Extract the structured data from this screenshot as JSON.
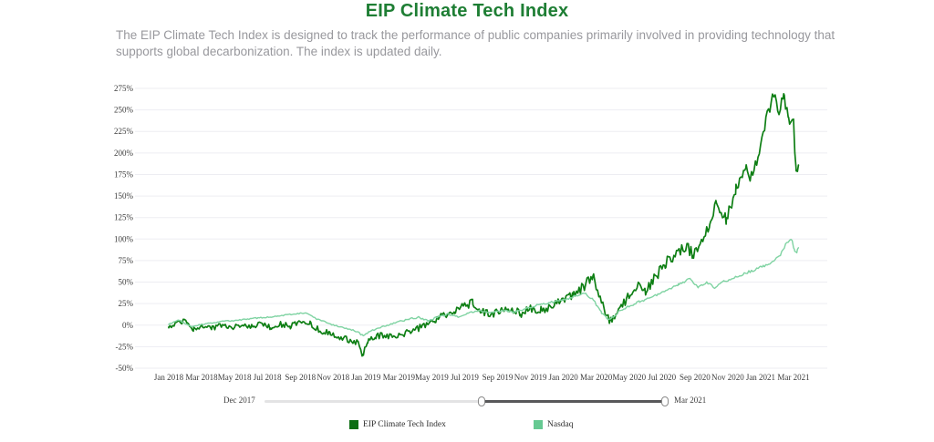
{
  "header": {
    "title": "EIP Climate Tech Index",
    "description": "The EIP Climate Tech Index is designed to track the performance of public companies primarily involved in providing technology that supports global decarbonization. The index is updated daily."
  },
  "colors": {
    "title_green": "#1e7e34",
    "eip_line": "#0e7f14",
    "eip_swatch": "#0d6e13",
    "nasdaq_line": "#7fd3a2",
    "nasdaq_swatch": "#66c992",
    "gridline": "#ededf2",
    "axis_text": "#3c3c3c",
    "description_gray": "#98989d",
    "slider_track_light": "#e3e3e4",
    "slider_track_dark": "#58585a"
  },
  "chart_data": {
    "type": "line",
    "title": "EIP Climate Tech Index",
    "xlabel": "",
    "ylabel": "",
    "grid": true,
    "legend_position": "bottom",
    "x_unit": "months since Jan 2018",
    "xlim": [
      -4.1,
      40.1
    ],
    "ylim": [
      -50,
      275
    ],
    "x_tick_positions": [
      0,
      2,
      4,
      6,
      8,
      10,
      12,
      14,
      16,
      18,
      20,
      22,
      24,
      26,
      28,
      30,
      32,
      34,
      36,
      38
    ],
    "x_tick_labels": [
      "Jan 2018",
      "Mar 2018",
      "May 2018",
      "Jul 2018",
      "Sep 2018",
      "Nov 2018",
      "Jan 2019",
      "Mar 2019",
      "May 2019",
      "Jul 2019",
      "Sep 2019",
      "Nov 2019",
      "Jan 2020",
      "Mar 2020",
      "May 2020",
      "Jul 2020",
      "Sep 2020",
      "Nov 2020",
      "Jan 2021",
      "Mar 2021"
    ],
    "y_tick_values": [
      275,
      250,
      225,
      200,
      175,
      150,
      125,
      100,
      75,
      50,
      25,
      0,
      -25,
      -50
    ],
    "y_tick_labels": [
      "275%",
      "250%",
      "225%",
      "200%",
      "175%",
      "150%",
      "125%",
      "100%",
      "75%",
      "50%",
      "25%",
      "0%",
      "-25%",
      "-50%"
    ],
    "series": [
      {
        "name": "EIP Climate Tech Index",
        "color": "#0e7f14",
        "stroke_width": 1.7,
        "jitter": {
          "base": 2.4,
          "growth": 0.13,
          "seed": 7.3
        },
        "points": [
          [
            0,
            -2
          ],
          [
            0.5,
            3
          ],
          [
            1.1,
            5
          ],
          [
            1.5,
            -5
          ],
          [
            2,
            -1
          ],
          [
            2.6,
            -4
          ],
          [
            3.2,
            0
          ],
          [
            3.8,
            -3
          ],
          [
            4.4,
            1
          ],
          [
            5,
            -2
          ],
          [
            5.6,
            2
          ],
          [
            6.2,
            -3
          ],
          [
            6.8,
            1
          ],
          [
            7.4,
            -1
          ],
          [
            8,
            3
          ],
          [
            8.6,
            1
          ],
          [
            9.2,
            -6
          ],
          [
            9.8,
            -10
          ],
          [
            10.4,
            -14
          ],
          [
            11,
            -17
          ],
          [
            11.5,
            -21
          ],
          [
            11.8,
            -34
          ],
          [
            12.1,
            -20
          ],
          [
            12.6,
            -14
          ],
          [
            13.2,
            -11
          ],
          [
            13.8,
            -13
          ],
          [
            14.4,
            -9
          ],
          [
            15,
            -5
          ],
          [
            15.6,
            0
          ],
          [
            16.2,
            6
          ],
          [
            16.8,
            11
          ],
          [
            17.4,
            16
          ],
          [
            18,
            22
          ],
          [
            18.5,
            27
          ],
          [
            19,
            16
          ],
          [
            19.6,
            13
          ],
          [
            20.2,
            17
          ],
          [
            20.8,
            21
          ],
          [
            21.4,
            14
          ],
          [
            22,
            18
          ],
          [
            22.6,
            16
          ],
          [
            23.2,
            23
          ],
          [
            24,
            30
          ],
          [
            24.6,
            36
          ],
          [
            25.2,
            44
          ],
          [
            25.8,
            57
          ],
          [
            26.3,
            28
          ],
          [
            26.8,
            2
          ],
          [
            27.2,
            16
          ],
          [
            27.8,
            28
          ],
          [
            28.4,
            46
          ],
          [
            29,
            40
          ],
          [
            29.6,
            55
          ],
          [
            30.2,
            72
          ],
          [
            30.8,
            82
          ],
          [
            31.4,
            92
          ],
          [
            31.9,
            83
          ],
          [
            32.4,
            95
          ],
          [
            32.9,
            118
          ],
          [
            33.3,
            146
          ],
          [
            33.9,
            122
          ],
          [
            34.5,
            158
          ],
          [
            35.1,
            182
          ],
          [
            35.5,
            170
          ],
          [
            36,
            212
          ],
          [
            36.4,
            243
          ],
          [
            36.8,
            270
          ],
          [
            37.1,
            247
          ],
          [
            37.4,
            266
          ],
          [
            37.7,
            240
          ],
          [
            38,
            234
          ],
          [
            38.15,
            180
          ],
          [
            38.3,
            186
          ]
        ]
      },
      {
        "name": "Nasdaq",
        "color": "#7fd3a2",
        "stroke_width": 1.4,
        "jitter": {
          "base": 0.6,
          "growth": 0.022,
          "seed": 3.1
        },
        "points": [
          [
            0,
            1
          ],
          [
            0.6,
            6
          ],
          [
            1.4,
            -2
          ],
          [
            2,
            1
          ],
          [
            2.8,
            3
          ],
          [
            3.6,
            5
          ],
          [
            4.4,
            6
          ],
          [
            5.2,
            8
          ],
          [
            6,
            9
          ],
          [
            6.8,
            11
          ],
          [
            7.6,
            13
          ],
          [
            8.4,
            14
          ],
          [
            9,
            7
          ],
          [
            9.6,
            3
          ],
          [
            10.2,
            -1
          ],
          [
            10.8,
            -4
          ],
          [
            11.4,
            -7
          ],
          [
            11.8,
            -12
          ],
          [
            12.4,
            -6
          ],
          [
            13,
            -2
          ],
          [
            13.8,
            3
          ],
          [
            14.6,
            7
          ],
          [
            15.2,
            9
          ],
          [
            15.8,
            5
          ],
          [
            16.4,
            10
          ],
          [
            17,
            13
          ],
          [
            17.6,
            10
          ],
          [
            18.2,
            14
          ],
          [
            19,
            17
          ],
          [
            19.6,
            14
          ],
          [
            20.4,
            17
          ],
          [
            21,
            15
          ],
          [
            21.8,
            20
          ],
          [
            22.6,
            24
          ],
          [
            23.4,
            27
          ],
          [
            24,
            29
          ],
          [
            24.6,
            33
          ],
          [
            25.3,
            37
          ],
          [
            25.8,
            30
          ],
          [
            26.3,
            15
          ],
          [
            26.8,
            6
          ],
          [
            27.4,
            16
          ],
          [
            28,
            22
          ],
          [
            28.6,
            27
          ],
          [
            29.2,
            31
          ],
          [
            29.8,
            36
          ],
          [
            30.4,
            42
          ],
          [
            31,
            47
          ],
          [
            31.7,
            54
          ],
          [
            32.2,
            44
          ],
          [
            32.7,
            50
          ],
          [
            33.2,
            44
          ],
          [
            33.8,
            51
          ],
          [
            34.4,
            55
          ],
          [
            35,
            60
          ],
          [
            35.6,
            64
          ],
          [
            36.2,
            69
          ],
          [
            36.8,
            74
          ],
          [
            37.2,
            82
          ],
          [
            37.6,
            96
          ],
          [
            37.9,
            99
          ],
          [
            38.05,
            87
          ],
          [
            38.2,
            85
          ],
          [
            38.3,
            90
          ]
        ]
      }
    ]
  },
  "slider": {
    "start_label": "Dec 2017",
    "end_label": "Mar 2021",
    "handle_positions_pct": [
      54,
      100
    ]
  },
  "legend": {
    "items": [
      {
        "label": "EIP Climate Tech Index",
        "color": "#0d6e13"
      },
      {
        "label": "Nasdaq",
        "color": "#66c992"
      }
    ]
  }
}
